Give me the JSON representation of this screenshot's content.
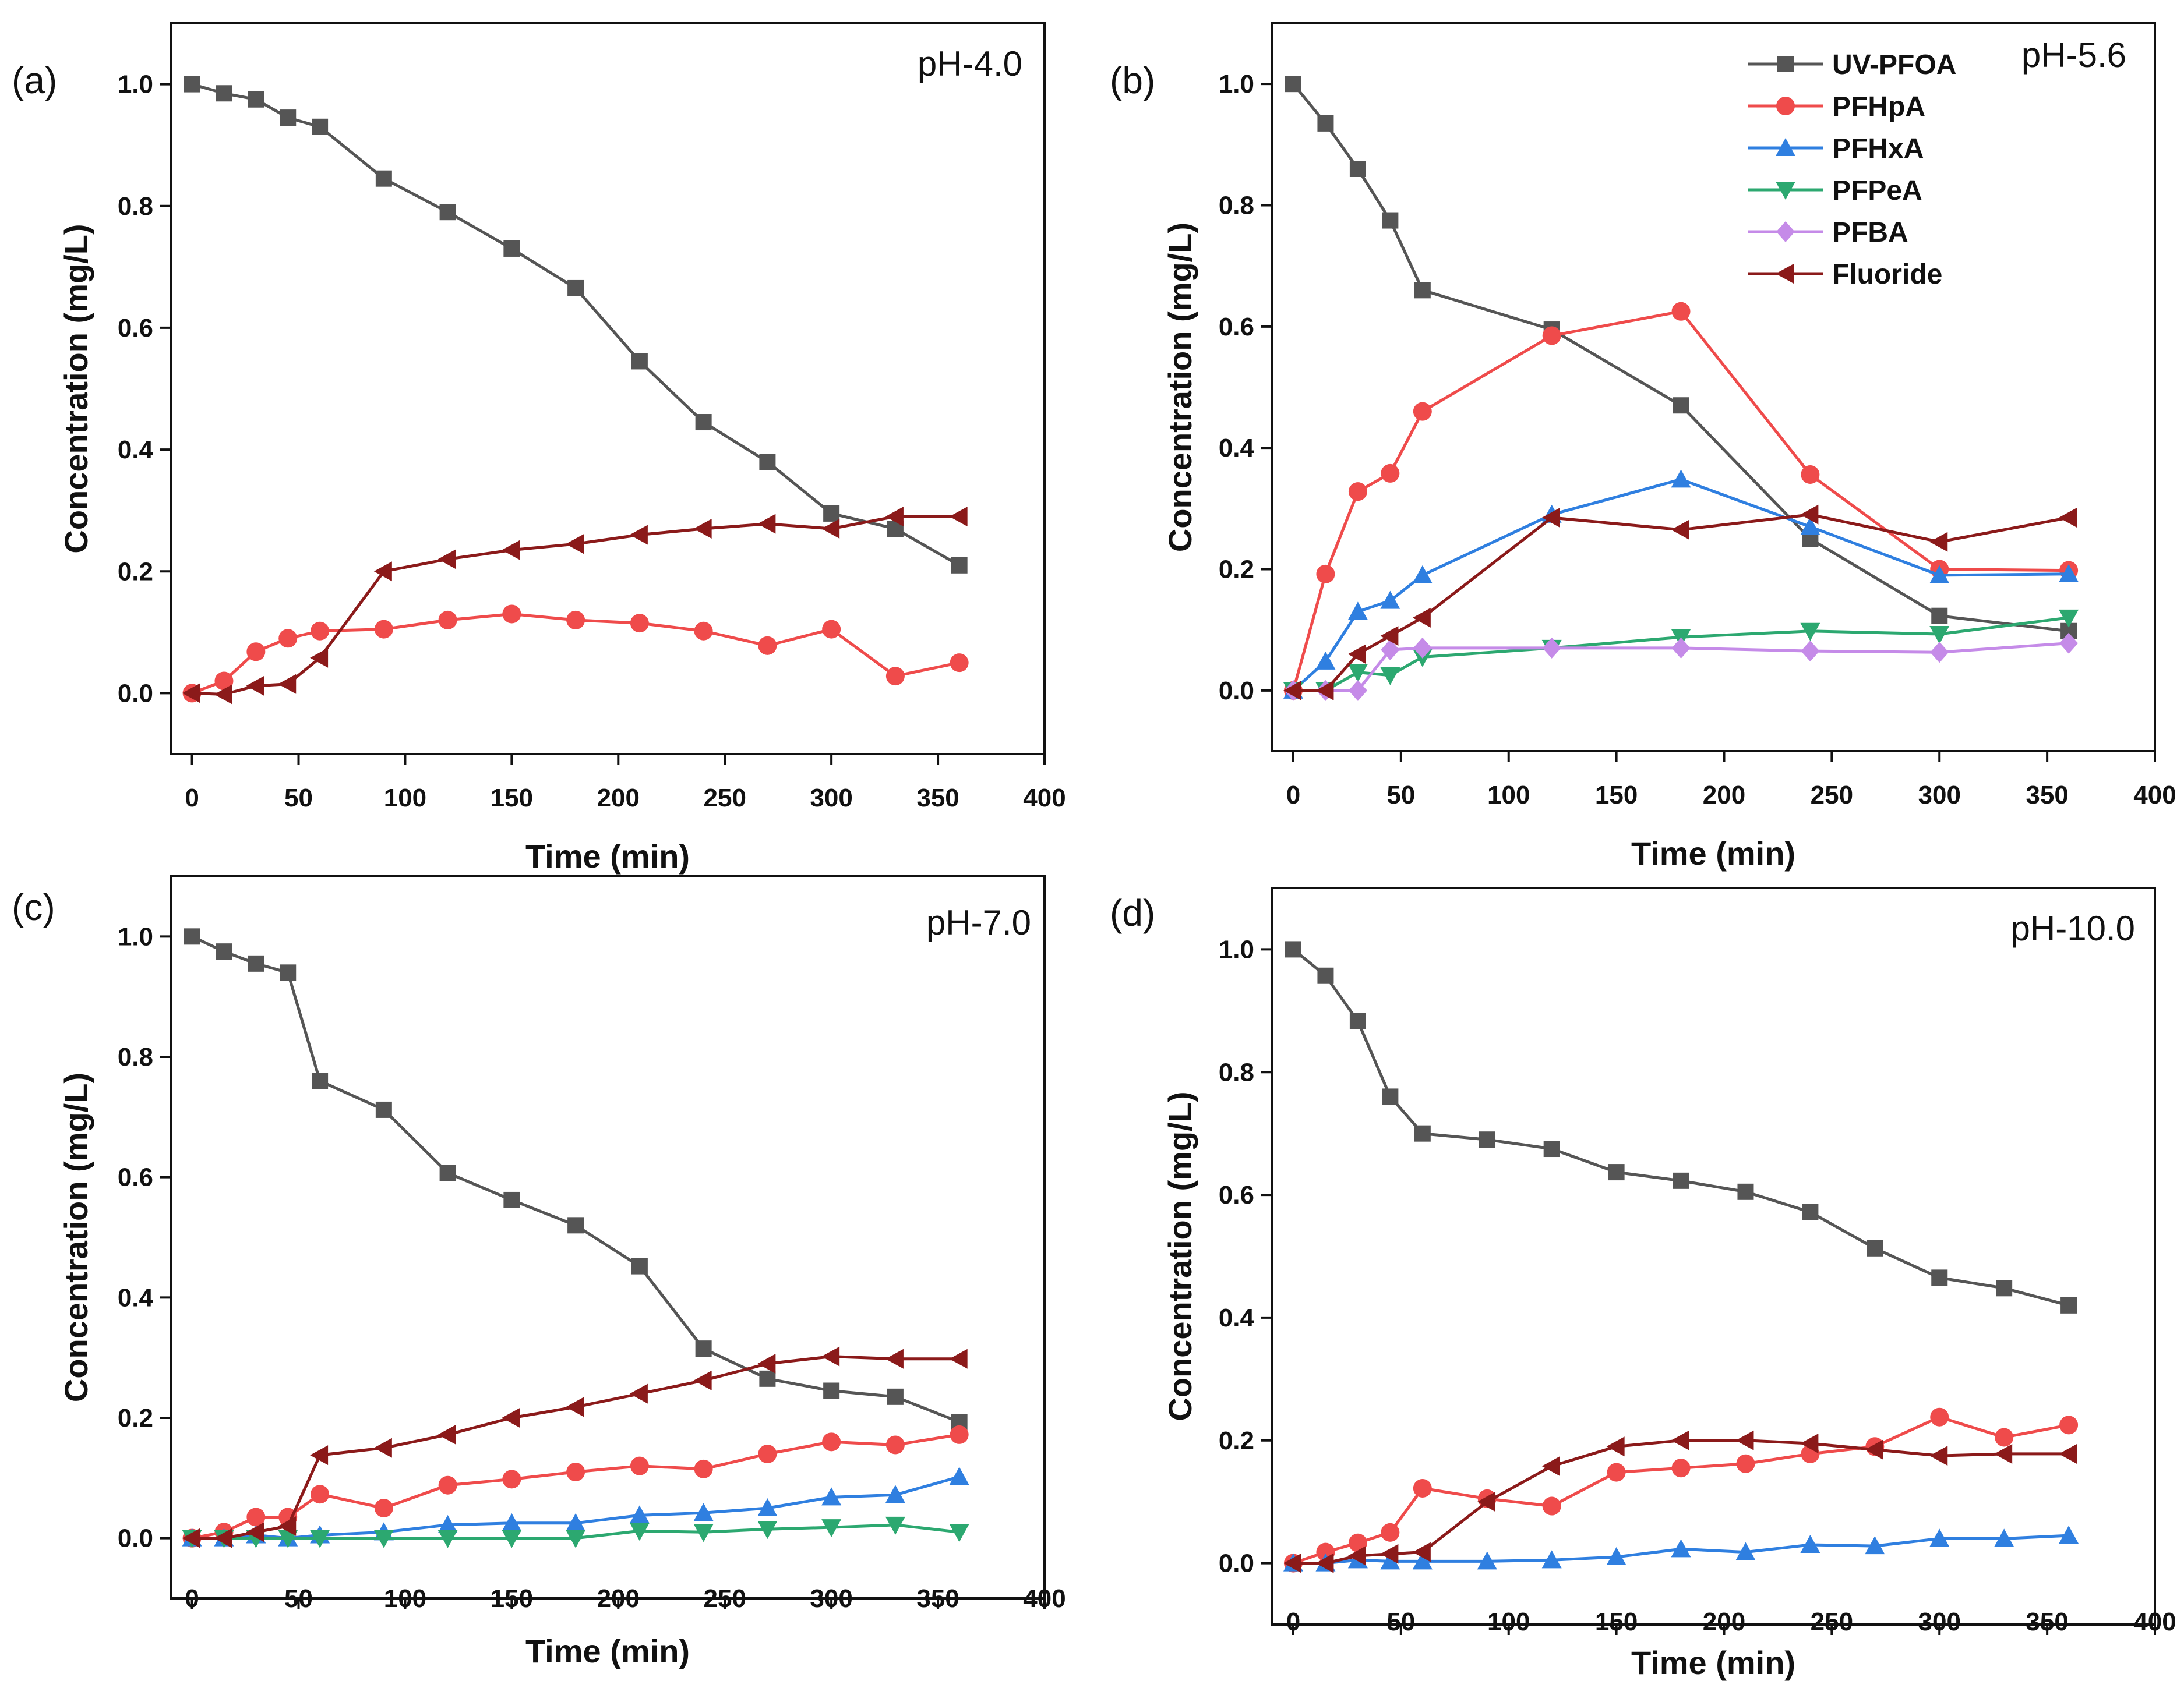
{
  "chart_data": [
    {
      "type": "line",
      "panel": "(a)",
      "title": "pH-4.0",
      "xlabel": "Time (min)",
      "ylabel": "Concentration (mg/L)",
      "xlim": [
        -10,
        400
      ],
      "ylim": [
        -0.1,
        1.1
      ],
      "xticks": [
        0,
        50,
        100,
        150,
        200,
        250,
        300,
        350,
        400
      ],
      "yticks": [
        0.0,
        0.2,
        0.4,
        0.6,
        0.8,
        1.0
      ],
      "xtick_labels": [
        "0",
        "50",
        "100",
        "150",
        "200",
        "250",
        "300",
        "350",
        "400"
      ],
      "ytick_labels": [
        "0.0",
        "0.2",
        "0.4",
        "0.6",
        "0.8",
        "1.0"
      ],
      "grid": false,
      "series": [
        {
          "name": "UV-PFOA",
          "color": "#555555",
          "marker": "square",
          "x": [
            0,
            15,
            30,
            45,
            60,
            90,
            120,
            150,
            180,
            210,
            240,
            270,
            300,
            330,
            360
          ],
          "y": [
            1.0,
            0.985,
            0.975,
            0.945,
            0.93,
            0.845,
            0.79,
            0.73,
            0.665,
            0.545,
            0.445,
            0.38,
            0.295,
            0.27,
            0.21
          ]
        },
        {
          "name": "PFHpA",
          "color": "#ef4b4b",
          "marker": "circle",
          "x": [
            0,
            15,
            30,
            45,
            60,
            90,
            120,
            150,
            180,
            210,
            240,
            270,
            300,
            330,
            360
          ],
          "y": [
            0.0,
            0.02,
            0.068,
            0.09,
            0.102,
            0.105,
            0.12,
            0.13,
            0.12,
            0.115,
            0.102,
            0.078,
            0.105,
            0.028,
            0.05
          ]
        },
        {
          "name": "Fluoride",
          "color": "#8b1a1a",
          "marker": "triangle-left",
          "x": [
            0,
            15,
            30,
            45,
            60,
            90,
            120,
            150,
            180,
            210,
            240,
            270,
            300,
            330,
            360
          ],
          "y": [
            0.0,
            -0.002,
            0.012,
            0.015,
            0.058,
            0.2,
            0.22,
            0.235,
            0.245,
            0.26,
            0.27,
            0.278,
            0.27,
            0.29,
            0.29
          ]
        }
      ]
    },
    {
      "type": "line",
      "panel": "(b)",
      "title": "pH-5.6",
      "xlabel": "Time (min)",
      "ylabel": "Concentration (mg/L)",
      "xlim": [
        -10,
        400
      ],
      "ylim": [
        -0.1,
        1.1
      ],
      "xticks": [
        0,
        50,
        100,
        150,
        200,
        250,
        300,
        350,
        400
      ],
      "yticks": [
        0.0,
        0.2,
        0.4,
        0.6,
        0.8,
        1.0
      ],
      "xtick_labels": [
        "0",
        "50",
        "100",
        "150",
        "200",
        "250",
        "300",
        "350",
        "400"
      ],
      "ytick_labels": [
        "0.0",
        "0.2",
        "0.4",
        "0.6",
        "0.8",
        "1.0"
      ],
      "grid": false,
      "legend": {
        "position": "top-right",
        "entries": [
          "UV-PFOA",
          "PFHpA",
          "PFHxA",
          "PFPeA",
          "PFBA",
          "Fluoride"
        ]
      },
      "series": [
        {
          "name": "UV-PFOA",
          "color": "#555555",
          "marker": "square",
          "x": [
            0,
            15,
            30,
            45,
            60,
            120,
            180,
            240,
            300,
            360
          ],
          "y": [
            1.0,
            0.935,
            0.86,
            0.775,
            0.66,
            0.595,
            0.47,
            0.25,
            0.123,
            0.098
          ]
        },
        {
          "name": "PFHpA",
          "color": "#ef4b4b",
          "marker": "circle",
          "x": [
            0,
            15,
            30,
            45,
            60,
            120,
            180,
            240,
            300,
            360
          ],
          "y": [
            0.0,
            0.192,
            0.328,
            0.358,
            0.46,
            0.585,
            0.625,
            0.356,
            0.2,
            0.198
          ]
        },
        {
          "name": "PFHxA",
          "color": "#2f7fe0",
          "marker": "triangle-up",
          "x": [
            0,
            15,
            30,
            45,
            60,
            120,
            180,
            240,
            300,
            360
          ],
          "y": [
            0.0,
            0.048,
            0.13,
            0.148,
            0.19,
            0.29,
            0.348,
            0.27,
            0.19,
            0.192
          ]
        },
        {
          "name": "PFPeA",
          "color": "#2ca870",
          "marker": "triangle-down",
          "x": [
            0,
            15,
            30,
            45,
            60,
            120,
            180,
            240,
            300,
            360
          ],
          "y": [
            0.0,
            0.0,
            0.03,
            0.025,
            0.055,
            0.07,
            0.088,
            0.098,
            0.093,
            0.12
          ]
        },
        {
          "name": "PFBA",
          "color": "#c58be8",
          "marker": "diamond",
          "x": [
            0,
            15,
            30,
            45,
            60,
            120,
            180,
            240,
            300,
            360
          ],
          "y": [
            0.0,
            0.0,
            0.0,
            0.067,
            0.07,
            0.07,
            0.07,
            0.065,
            0.063,
            0.078
          ]
        },
        {
          "name": "Fluoride",
          "color": "#8b1a1a",
          "marker": "triangle-left",
          "x": [
            0,
            15,
            30,
            45,
            60,
            120,
            180,
            240,
            300,
            360
          ],
          "y": [
            0.0,
            0.0,
            0.06,
            0.09,
            0.12,
            0.285,
            0.265,
            0.29,
            0.245,
            0.285
          ]
        }
      ]
    },
    {
      "type": "line",
      "panel": "(c)",
      "title": "pH-7.0",
      "xlabel": "Time (min)",
      "ylabel": "Concentration (mg/L)",
      "xlim": [
        -10,
        400
      ],
      "ylim": [
        -0.1,
        1.1
      ],
      "xticks": [
        0,
        50,
        100,
        150,
        200,
        250,
        300,
        350,
        400
      ],
      "yticks": [
        0.0,
        0.2,
        0.4,
        0.6,
        0.8,
        1.0
      ],
      "xtick_labels": [
        "0",
        "50",
        "100",
        "150",
        "200",
        "250",
        "300",
        "350",
        "400"
      ],
      "ytick_labels": [
        "0.0",
        "0.2",
        "0.4",
        "0.6",
        "0.8",
        "1.0"
      ],
      "grid": false,
      "series": [
        {
          "name": "UV-PFOA",
          "color": "#555555",
          "marker": "square",
          "x": [
            0,
            15,
            30,
            45,
            60,
            90,
            120,
            150,
            180,
            210,
            240,
            270,
            300,
            330,
            360
          ],
          "y": [
            1.0,
            0.975,
            0.955,
            0.94,
            0.76,
            0.712,
            0.607,
            0.562,
            0.52,
            0.452,
            0.315,
            0.265,
            0.245,
            0.235,
            0.193
          ]
        },
        {
          "name": "PFHpA",
          "color": "#ef4b4b",
          "marker": "circle",
          "x": [
            0,
            15,
            30,
            45,
            60,
            90,
            120,
            150,
            180,
            210,
            240,
            270,
            300,
            330,
            360
          ],
          "y": [
            0.0,
            0.01,
            0.035,
            0.035,
            0.073,
            0.05,
            0.088,
            0.098,
            0.11,
            0.12,
            0.115,
            0.14,
            0.16,
            0.155,
            0.172
          ]
        },
        {
          "name": "PFHxA",
          "color": "#2f7fe0",
          "marker": "triangle-up",
          "x": [
            0,
            15,
            30,
            45,
            60,
            90,
            120,
            150,
            180,
            210,
            240,
            270,
            300,
            330,
            360
          ],
          "y": [
            0.0,
            0.0,
            0.005,
            0.0,
            0.005,
            0.01,
            0.022,
            0.025,
            0.025,
            0.038,
            0.042,
            0.05,
            0.068,
            0.072,
            0.102
          ]
        },
        {
          "name": "PFPeA",
          "color": "#2ca870",
          "marker": "triangle-down",
          "x": [
            0,
            15,
            30,
            45,
            60,
            90,
            120,
            150,
            180,
            210,
            240,
            270,
            300,
            330,
            360
          ],
          "y": [
            0.0,
            0.0,
            0.0,
            0.0,
            0.0,
            0.0,
            0.0,
            0.0,
            0.0,
            0.012,
            0.01,
            0.015,
            0.018,
            0.022,
            0.01
          ]
        },
        {
          "name": "Fluoride",
          "color": "#8b1a1a",
          "marker": "triangle-left",
          "x": [
            0,
            15,
            30,
            45,
            60,
            90,
            120,
            150,
            180,
            210,
            240,
            270,
            300,
            330,
            360
          ],
          "y": [
            0.0,
            0.0,
            0.01,
            0.02,
            0.138,
            0.15,
            0.172,
            0.2,
            0.218,
            0.24,
            0.262,
            0.29,
            0.302,
            0.298,
            0.298
          ]
        }
      ]
    },
    {
      "type": "line",
      "panel": "(d)",
      "title": "pH-10.0",
      "xlabel": "Time (min)",
      "ylabel": "Concentration (mg/L)",
      "xlim": [
        -10,
        400
      ],
      "ylim": [
        -0.1,
        1.1
      ],
      "xticks": [
        0,
        50,
        100,
        150,
        200,
        250,
        300,
        350,
        400
      ],
      "yticks": [
        0.0,
        0.2,
        0.4,
        0.6,
        0.8,
        1.0
      ],
      "xtick_labels": [
        "0",
        "50",
        "100",
        "150",
        "200",
        "250",
        "300",
        "350",
        "400"
      ],
      "ytick_labels": [
        "0.0",
        "0.2",
        "0.4",
        "0.6",
        "0.8",
        "1.0"
      ],
      "grid": false,
      "series": [
        {
          "name": "UV-PFOA",
          "color": "#555555",
          "marker": "square",
          "x": [
            0,
            15,
            30,
            45,
            60,
            90,
            120,
            150,
            180,
            210,
            240,
            270,
            300,
            330,
            360
          ],
          "y": [
            1.0,
            0.957,
            0.883,
            0.76,
            0.7,
            0.69,
            0.675,
            0.637,
            0.623,
            0.605,
            0.572,
            0.513,
            0.465,
            0.448,
            0.42
          ]
        },
        {
          "name": "PFHpA",
          "color": "#ef4b4b",
          "marker": "circle",
          "x": [
            0,
            15,
            30,
            45,
            60,
            90,
            120,
            150,
            180,
            210,
            240,
            270,
            300,
            330,
            360
          ],
          "y": [
            0.0,
            0.018,
            0.033,
            0.05,
            0.122,
            0.105,
            0.093,
            0.148,
            0.155,
            0.162,
            0.178,
            0.19,
            0.238,
            0.205,
            0.225
          ]
        },
        {
          "name": "PFHxA",
          "color": "#2f7fe0",
          "marker": "triangle-up",
          "x": [
            0,
            15,
            30,
            45,
            60,
            90,
            120,
            150,
            180,
            210,
            240,
            270,
            300,
            330,
            360
          ],
          "y": [
            0.0,
            0.0,
            0.005,
            0.003,
            0.003,
            0.003,
            0.005,
            0.01,
            0.023,
            0.018,
            0.03,
            0.028,
            0.04,
            0.04,
            0.045
          ]
        },
        {
          "name": "Fluoride",
          "color": "#8b1a1a",
          "marker": "triangle-left",
          "x": [
            0,
            15,
            30,
            45,
            60,
            90,
            120,
            150,
            180,
            210,
            240,
            270,
            300,
            330,
            360
          ],
          "y": [
            0.0,
            0.0,
            0.012,
            0.015,
            0.018,
            0.1,
            0.158,
            0.19,
            0.2,
            0.2,
            0.195,
            0.185,
            0.175,
            0.178,
            0.178
          ]
        }
      ]
    }
  ]
}
